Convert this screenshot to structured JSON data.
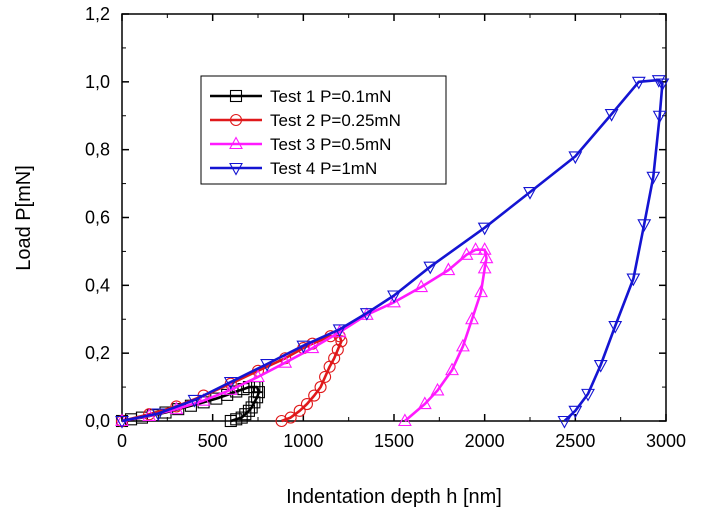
{
  "chart_data": {
    "type": "line",
    "xlabel": "Indentation depth  h [nm]",
    "ylabel": "Load P[mN]",
    "xlim": [
      0,
      3000
    ],
    "ylim": [
      0,
      1.2
    ],
    "x_ticks": [
      "0",
      "500",
      "1000",
      "1500",
      "2000",
      "2500",
      "3000"
    ],
    "y_ticks": [
      "0,0",
      "0,2",
      "0,4",
      "0,6",
      "0,8",
      "1,0",
      "1,2"
    ],
    "grid": false,
    "legend_position": "upper-left (inside plot)",
    "series": [
      {
        "name": "Test 1 P=0.1mN",
        "color": "#000000",
        "marker": "square",
        "points": [
          [
            0,
            0.0
          ],
          [
            50,
            0.005
          ],
          [
            110,
            0.01
          ],
          [
            170,
            0.017
          ],
          [
            240,
            0.025
          ],
          [
            310,
            0.035
          ],
          [
            380,
            0.045
          ],
          [
            450,
            0.055
          ],
          [
            520,
            0.066
          ],
          [
            580,
            0.077
          ],
          [
            630,
            0.087
          ],
          [
            670,
            0.094
          ],
          [
            700,
            0.1
          ],
          [
            730,
            0.1
          ],
          [
            745,
            0.1
          ],
          [
            755,
            0.085
          ],
          [
            745,
            0.07
          ],
          [
            730,
            0.055
          ],
          [
            715,
            0.04
          ],
          [
            700,
            0.03
          ],
          [
            680,
            0.02
          ],
          [
            660,
            0.01
          ],
          [
            630,
            0.005
          ],
          [
            600,
            0.0
          ]
        ]
      },
      {
        "name": "Test 2 P=0.25mN",
        "color": "#e0191b",
        "marker": "circle",
        "points": [
          [
            0,
            0.0
          ],
          [
            150,
            0.02
          ],
          [
            300,
            0.043
          ],
          [
            450,
            0.075
          ],
          [
            600,
            0.11
          ],
          [
            750,
            0.148
          ],
          [
            900,
            0.185
          ],
          [
            1000,
            0.215
          ],
          [
            1050,
            0.228
          ],
          [
            1150,
            0.25
          ],
          [
            1200,
            0.25
          ],
          [
            1210,
            0.235
          ],
          [
            1190,
            0.21
          ],
          [
            1170,
            0.185
          ],
          [
            1145,
            0.16
          ],
          [
            1120,
            0.13
          ],
          [
            1095,
            0.1
          ],
          [
            1060,
            0.075
          ],
          [
            1020,
            0.05
          ],
          [
            980,
            0.03
          ],
          [
            930,
            0.01
          ],
          [
            880,
            0.0
          ]
        ]
      },
      {
        "name": "Test 3 P=0.5mN",
        "color": "#ff1aff",
        "marker": "triangle-up",
        "points": [
          [
            0,
            0.0
          ],
          [
            150,
            0.015
          ],
          [
            300,
            0.035
          ],
          [
            450,
            0.06
          ],
          [
            600,
            0.092
          ],
          [
            750,
            0.13
          ],
          [
            900,
            0.172
          ],
          [
            1050,
            0.215
          ],
          [
            1200,
            0.262
          ],
          [
            1350,
            0.313
          ],
          [
            1500,
            0.35
          ],
          [
            1650,
            0.395
          ],
          [
            1800,
            0.445
          ],
          [
            1900,
            0.49
          ],
          [
            1950,
            0.505
          ],
          [
            2000,
            0.505
          ],
          [
            2010,
            0.48
          ],
          [
            2000,
            0.45
          ],
          [
            1980,
            0.38
          ],
          [
            1930,
            0.3
          ],
          [
            1880,
            0.22
          ],
          [
            1820,
            0.15
          ],
          [
            1740,
            0.09
          ],
          [
            1670,
            0.05
          ],
          [
            1560,
            0.0
          ]
        ]
      },
      {
        "name": "Test 4 P=1mN",
        "color": "#1414d2",
        "marker": "triangle-down",
        "points": [
          [
            0,
            0.0
          ],
          [
            200,
            0.022
          ],
          [
            400,
            0.062
          ],
          [
            600,
            0.115
          ],
          [
            800,
            0.168
          ],
          [
            1000,
            0.222
          ],
          [
            1200,
            0.27
          ],
          [
            1350,
            0.318
          ],
          [
            1500,
            0.37
          ],
          [
            1700,
            0.455
          ],
          [
            2000,
            0.57
          ],
          [
            2250,
            0.675
          ],
          [
            2500,
            0.78
          ],
          [
            2700,
            0.905
          ],
          [
            2850,
            1.0
          ],
          [
            2960,
            1.005
          ],
          [
            2980,
            0.995
          ],
          [
            2965,
            0.9
          ],
          [
            2930,
            0.72
          ],
          [
            2880,
            0.58
          ],
          [
            2820,
            0.42
          ],
          [
            2720,
            0.28
          ],
          [
            2640,
            0.165
          ],
          [
            2570,
            0.08
          ],
          [
            2500,
            0.03
          ],
          [
            2440,
            0.0
          ]
        ]
      }
    ]
  }
}
